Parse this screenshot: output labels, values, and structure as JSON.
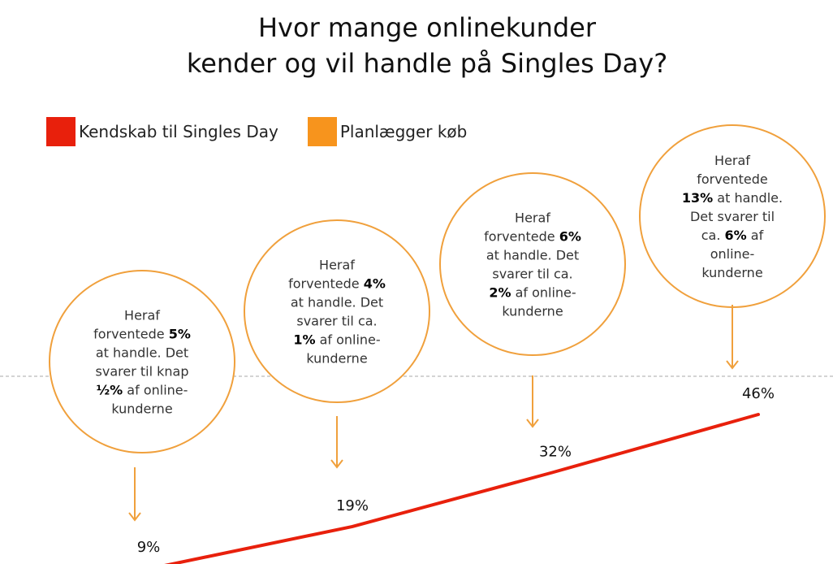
{
  "title_line1": "Hvor mange onlinekunder",
  "title_line2": "kender og vil handle på Singles Day?",
  "legend": [
    {
      "label": "Kendskab til Singles Day",
      "color": "#e8200c"
    },
    {
      "label": "Planlægger køb",
      "color": "#f7941d"
    }
  ],
  "colors": {
    "line": "#e8200c",
    "bubble": "#f0a03c",
    "reference": "#aaaaaa"
  },
  "chart_data": {
    "type": "line",
    "title": "Hvor mange onlinekunder kender og vil handle på Singles Day?",
    "series": [
      {
        "name": "Kendskab til Singles Day",
        "values": [
          9,
          19,
          32,
          46
        ],
        "labels": [
          "9%",
          "19%",
          "32%",
          "46%"
        ]
      }
    ],
    "reference_line": "dashed, horizontal, grey",
    "annotations": [
      {
        "name": "Planlægger køb",
        "lines": [
          [
            {
              "t": "Heraf"
            }
          ],
          [
            {
              "t": "forventede "
            },
            {
              "t": "5%",
              "b": true
            }
          ],
          [
            {
              "t": "at handle. Det"
            }
          ],
          [
            {
              "t": "svarer til knap"
            }
          ],
          [
            {
              "t": "½%",
              "b": true
            },
            {
              "t": " af online-"
            }
          ],
          [
            {
              "t": "kunderne"
            }
          ]
        ]
      },
      {
        "name": "Planlægger køb",
        "lines": [
          [
            {
              "t": "Heraf"
            }
          ],
          [
            {
              "t": "forventede "
            },
            {
              "t": "4%",
              "b": true
            }
          ],
          [
            {
              "t": "at handle. Det"
            }
          ],
          [
            {
              "t": "svarer til ca."
            }
          ],
          [
            {
              "t": "1%",
              "b": true
            },
            {
              "t": " af online-"
            }
          ],
          [
            {
              "t": "kunderne"
            }
          ]
        ]
      },
      {
        "name": "Planlægger køb",
        "lines": [
          [
            {
              "t": "Heraf"
            }
          ],
          [
            {
              "t": "forventede "
            },
            {
              "t": "6%",
              "b": true
            }
          ],
          [
            {
              "t": "at handle. Det"
            }
          ],
          [
            {
              "t": "svarer til ca."
            }
          ],
          [
            {
              "t": "2%",
              "b": true
            },
            {
              "t": " af online-"
            }
          ],
          [
            {
              "t": "kunderne"
            }
          ]
        ]
      },
      {
        "name": "Planlægger køb",
        "lines": [
          [
            {
              "t": "Heraf"
            }
          ],
          [
            {
              "t": "forventede"
            }
          ],
          [
            {
              "t": "13%",
              "b": true
            },
            {
              "t": " at handle."
            }
          ],
          [
            {
              "t": "Det svarer til"
            }
          ],
          [
            {
              "t": "ca. "
            },
            {
              "t": "6%",
              "b": true
            },
            {
              "t": " af"
            }
          ],
          [
            {
              "t": "online-"
            }
          ],
          [
            {
              "t": "kunderne"
            }
          ]
        ]
      }
    ],
    "grid": false,
    "legend_position": "top-left"
  }
}
